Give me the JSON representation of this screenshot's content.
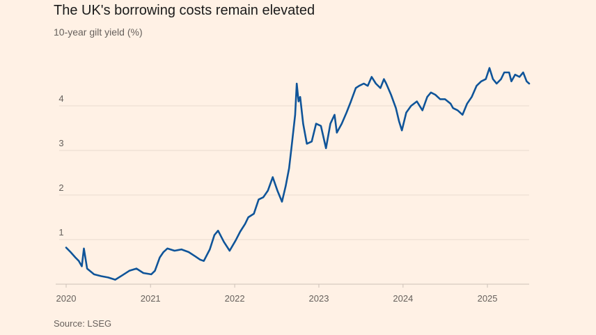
{
  "header": {
    "title": "The UK's borrowing costs remain elevated",
    "subtitle": "10-year gilt yield (%)"
  },
  "footer": {
    "source": "Source: LSEG"
  },
  "colors": {
    "background": "#fff1e5",
    "line": "#0f5499",
    "grid": "#e9dccf",
    "text": "#66605c"
  },
  "chart_data": {
    "type": "line",
    "title": "The UK's borrowing costs remain elevated",
    "subtitle": "10-year gilt yield (%)",
    "xlabel": "",
    "ylabel": "",
    "x_ticks": [
      "2020",
      "2021",
      "2022",
      "2023",
      "2024",
      "2025"
    ],
    "y_ticks": [
      "1",
      "2",
      "3",
      "4"
    ],
    "xlim": [
      "2020-01-01",
      "2025-07-01"
    ],
    "ylim": [
      0,
      5
    ],
    "grid": "horizontal",
    "series": [
      {
        "color": "#0f5499",
        "x": [
          "2020-01-01",
          "2020-01-20",
          "2020-02-10",
          "2020-02-25",
          "2020-03-09",
          "2020-03-18",
          "2020-04-01",
          "2020-05-01",
          "2020-06-01",
          "2020-07-01",
          "2020-08-01",
          "2020-09-01",
          "2020-10-01",
          "2020-11-01",
          "2020-12-01",
          "2021-01-04",
          "2021-01-20",
          "2021-02-10",
          "2021-02-26",
          "2021-03-15",
          "2021-04-15",
          "2021-05-15",
          "2021-06-15",
          "2021-07-15",
          "2021-08-04",
          "2021-08-20",
          "2021-09-15",
          "2021-10-05",
          "2021-10-21",
          "2021-11-15",
          "2021-12-10",
          "2022-01-05",
          "2022-01-25",
          "2022-02-15",
          "2022-03-01",
          "2022-03-25",
          "2022-04-15",
          "2022-05-05",
          "2022-05-25",
          "2022-06-15",
          "2022-07-05",
          "2022-07-25",
          "2022-08-10",
          "2022-08-25",
          "2022-09-05",
          "2022-09-20",
          "2022-09-27",
          "2022-10-05",
          "2022-10-12",
          "2022-10-25",
          "2022-11-10",
          "2022-12-01",
          "2022-12-20",
          "2023-01-10",
          "2023-02-01",
          "2023-02-20",
          "2023-03-10",
          "2023-03-20",
          "2023-04-10",
          "2023-05-01",
          "2023-05-20",
          "2023-06-10",
          "2023-06-25",
          "2023-07-15",
          "2023-08-01",
          "2023-08-18",
          "2023-09-05",
          "2023-09-25",
          "2023-10-10",
          "2023-10-20",
          "2023-11-10",
          "2023-12-01",
          "2023-12-15",
          "2023-12-27",
          "2024-01-15",
          "2024-02-05",
          "2024-03-01",
          "2024-03-25",
          "2024-04-15",
          "2024-05-01",
          "2024-05-20",
          "2024-06-10",
          "2024-07-01",
          "2024-07-25",
          "2024-08-05",
          "2024-08-25",
          "2024-09-15",
          "2024-10-05",
          "2024-10-25",
          "2024-11-15",
          "2024-12-05",
          "2024-12-25",
          "2025-01-10",
          "2025-01-25",
          "2025-02-10",
          "2025-03-01",
          "2025-03-15",
          "2025-04-05",
          "2025-04-15",
          "2025-05-01",
          "2025-05-20",
          "2025-06-05",
          "2025-06-20",
          "2025-07-01"
        ],
        "values": [
          0.82,
          0.72,
          0.6,
          0.52,
          0.4,
          0.8,
          0.35,
          0.22,
          0.18,
          0.15,
          0.1,
          0.2,
          0.3,
          0.35,
          0.25,
          0.22,
          0.3,
          0.6,
          0.72,
          0.8,
          0.75,
          0.78,
          0.72,
          0.62,
          0.55,
          0.52,
          0.78,
          1.1,
          1.2,
          0.95,
          0.75,
          0.98,
          1.18,
          1.35,
          1.5,
          1.58,
          1.9,
          1.95,
          2.1,
          2.4,
          2.1,
          1.85,
          2.2,
          2.6,
          3.1,
          3.8,
          4.5,
          4.1,
          4.2,
          3.6,
          3.15,
          3.2,
          3.6,
          3.55,
          3.05,
          3.6,
          3.8,
          3.4,
          3.6,
          3.85,
          4.1,
          4.4,
          4.45,
          4.5,
          4.45,
          4.65,
          4.5,
          4.4,
          4.6,
          4.5,
          4.25,
          3.95,
          3.65,
          3.45,
          3.85,
          4.0,
          4.1,
          3.9,
          4.2,
          4.3,
          4.25,
          4.15,
          4.15,
          4.05,
          3.95,
          3.9,
          3.8,
          4.05,
          4.2,
          4.45,
          4.55,
          4.6,
          4.85,
          4.6,
          4.5,
          4.6,
          4.75,
          4.75,
          4.55,
          4.7,
          4.65,
          4.75,
          4.55,
          4.5
        ]
      }
    ]
  }
}
